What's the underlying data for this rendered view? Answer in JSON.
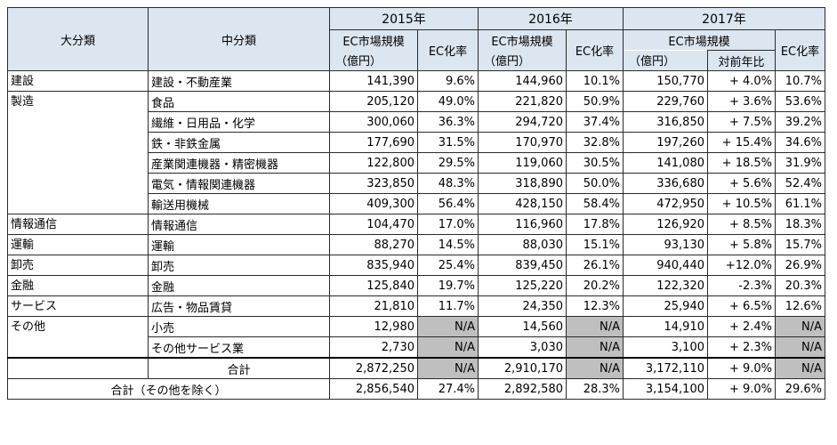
{
  "headers": {
    "major": "大分類",
    "middle": "中分類",
    "years": [
      "2015年",
      "2016年",
      "2017年"
    ],
    "ec_market": "EC市場規模",
    "unit": "（億円）",
    "ec_rate": "EC化率",
    "yoy": "対前年比"
  },
  "rows": [
    {
      "major": "建設",
      "middle": "建設・不動産業",
      "v2015": "141,390",
      "r2015": "9.6%",
      "v2016": "144,960",
      "r2016": "10.1%",
      "v2017": "150,770",
      "yoy": "+ 4.0%",
      "r2017": "10.7%"
    },
    {
      "major": "製造",
      "middle": "食品",
      "v2015": "205,120",
      "r2015": "49.0%",
      "v2016": "221,820",
      "r2016": "50.9%",
      "v2017": "229,760",
      "yoy": "+ 3.6%",
      "r2017": "53.6%"
    },
    {
      "major": "",
      "middle": "繊維・日用品・化学",
      "v2015": "300,060",
      "r2015": "36.3%",
      "v2016": "294,720",
      "r2016": "37.4%",
      "v2017": "316,850",
      "yoy": "+ 7.5%",
      "r2017": "39.2%"
    },
    {
      "major": "",
      "middle": "鉄・非鉄金属",
      "v2015": "177,690",
      "r2015": "31.5%",
      "v2016": "170,970",
      "r2016": "32.8%",
      "v2017": "197,260",
      "yoy": "+ 15.4%",
      "r2017": "34.6%"
    },
    {
      "major": "",
      "middle": "産業関連機器・精密機器",
      "v2015": "122,800",
      "r2015": "29.5%",
      "v2016": "119,060",
      "r2016": "30.5%",
      "v2017": "141,080",
      "yoy": "+ 18.5%",
      "r2017": "31.9%"
    },
    {
      "major": "",
      "middle": "電気・情報関連機器",
      "v2015": "323,850",
      "r2015": "48.3%",
      "v2016": "318,890",
      "r2016": "50.0%",
      "v2017": "336,680",
      "yoy": "+ 5.6%",
      "r2017": "52.4%"
    },
    {
      "major": "",
      "middle": "輸送用機械",
      "v2015": "409,300",
      "r2015": "56.4%",
      "v2016": "428,150",
      "r2016": "58.4%",
      "v2017": "472,950",
      "yoy": "+ 10.5%",
      "r2017": "61.1%"
    },
    {
      "major": "情報通信",
      "middle": "情報通信",
      "v2015": "104,470",
      "r2015": "17.0%",
      "v2016": "116,960",
      "r2016": "17.8%",
      "v2017": "126,920",
      "yoy": "+ 8.5%",
      "r2017": "18.3%"
    },
    {
      "major": "運輸",
      "middle": "運輸",
      "v2015": "88,270",
      "r2015": "14.5%",
      "v2016": "88,030",
      "r2016": "15.1%",
      "v2017": "93,130",
      "yoy": "+ 5.8%",
      "r2017": "15.7%"
    },
    {
      "major": "卸売",
      "middle": "卸売",
      "v2015": "835,940",
      "r2015": "25.4%",
      "v2016": "839,450",
      "r2016": "26.1%",
      "v2017": "940,440",
      "yoy": "+12.0%",
      "r2017": "26.9%"
    },
    {
      "major": "金融",
      "middle": "金融",
      "v2015": "125,840",
      "r2015": "19.7%",
      "v2016": "125,220",
      "r2016": "20.2%",
      "v2017": "122,320",
      "yoy": "-2.3%",
      "r2017": "20.3%"
    },
    {
      "major": "サービス",
      "middle": "広告・物品賃貸",
      "v2015": "21,810",
      "r2015": "11.7%",
      "v2016": "24,350",
      "r2016": "12.3%",
      "v2017": "25,940",
      "yoy": "+ 6.5%",
      "r2017": "12.6%"
    },
    {
      "major": "その他",
      "middle": "小売",
      "v2015": "12,980",
      "r2015": "N/A",
      "v2016": "14,560",
      "r2016": "N/A",
      "v2017": "14,910",
      "yoy": "+ 2.4%",
      "r2017": "N/A"
    },
    {
      "major": "",
      "middle": "その他サービス業",
      "v2015": "2,730",
      "r2015": "N/A",
      "v2016": "3,030",
      "r2016": "N/A",
      "v2017": "3,100",
      "yoy": "+ 2.3%",
      "r2017": "N/A"
    }
  ],
  "total": {
    "label": "合計",
    "v2015": "2,872,250",
    "r2015": "N/A",
    "v2016": "2,910,170",
    "r2016": "N/A",
    "v2017": "3,172,110",
    "yoy": "+ 9.0%",
    "r2017": "N/A"
  },
  "total_excl": {
    "label": "合計（その他を除く）",
    "v2015": "2,856,540",
    "r2015": "27.4%",
    "v2016": "2,892,580",
    "r2016": "28.3%",
    "v2017": "3,154,100",
    "yoy": "+ 9.0%",
    "r2017": "29.6%"
  }
}
